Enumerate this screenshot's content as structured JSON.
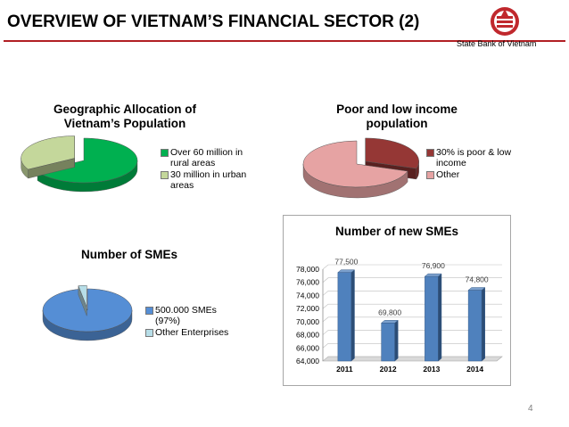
{
  "header": {
    "title": "OVERVIEW OF VIETNAM’S FINANCIAL SECTOR (2)",
    "bank_name": "State Bank of Vietnam",
    "page_number": "4"
  },
  "chart_data": [
    {
      "type": "pie",
      "title": "Geographic Allocation of Vietnam’s Population",
      "categories": [
        "Over 60 million in rural areas",
        "30 million in urban areas"
      ],
      "values": [
        60,
        30
      ],
      "colors": [
        "#00b050",
        "#c4d79b"
      ],
      "exploded": [
        false,
        true
      ],
      "legend_position": "right"
    },
    {
      "type": "pie",
      "title": "Poor and low income population",
      "categories": [
        "30% is poor & low income",
        "Other"
      ],
      "values": [
        30,
        70
      ],
      "colors": [
        "#953735",
        "#e6a3a3"
      ],
      "exploded": [
        true,
        false
      ],
      "legend_position": "right"
    },
    {
      "type": "pie",
      "title": "Number of SMEs",
      "categories": [
        "500.000 SMEs (97%)",
        "Other Enterprises"
      ],
      "values": [
        97,
        3
      ],
      "colors": [
        "#558ed5",
        "#b7dee8"
      ],
      "exploded": [
        false,
        true
      ],
      "legend_position": "right"
    },
    {
      "type": "bar",
      "title": "Number of new SMEs",
      "categories": [
        "2011",
        "2012",
        "2013",
        "2014"
      ],
      "values": [
        77500,
        69800,
        76900,
        74800
      ],
      "data_labels": [
        "77,500",
        "69,800",
        "76,900",
        "74,800"
      ],
      "ylim": [
        64000,
        78000
      ],
      "y_ticks": [
        "64,000",
        "66,000",
        "68,000",
        "70,000",
        "72,000",
        "74,000",
        "76,000",
        "78,000"
      ],
      "y_tick_values": [
        64000,
        66000,
        68000,
        70000,
        72000,
        74000,
        76000,
        78000
      ],
      "grid": true,
      "bar_color": "#4f81bd"
    }
  ]
}
